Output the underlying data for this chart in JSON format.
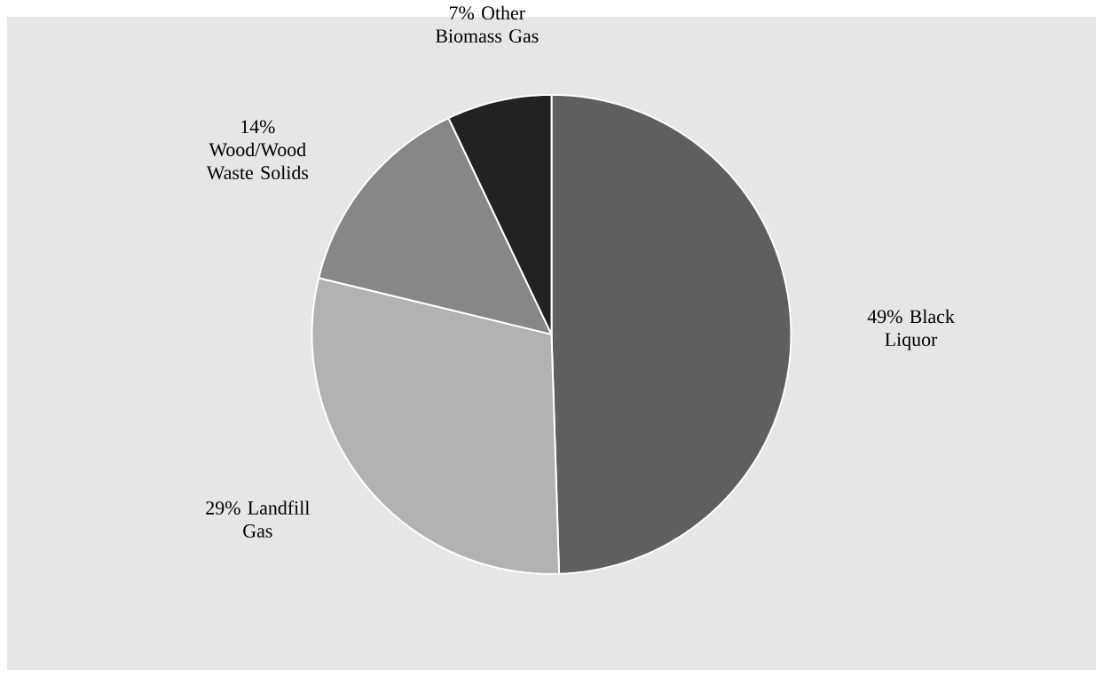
{
  "chart_data": {
    "type": "pie",
    "categories": [
      "Black Liquor",
      "Landfill Gas",
      "Wood/Wood Waste Solids",
      "Other Biomass Gas"
    ],
    "values": [
      49,
      29,
      14,
      7
    ],
    "value_labels": [
      "49%",
      "29%",
      "14%",
      "7%"
    ],
    "colors": [
      "#5f5f5f",
      "#b2b2b2",
      "#878787",
      "#222222"
    ]
  }
}
